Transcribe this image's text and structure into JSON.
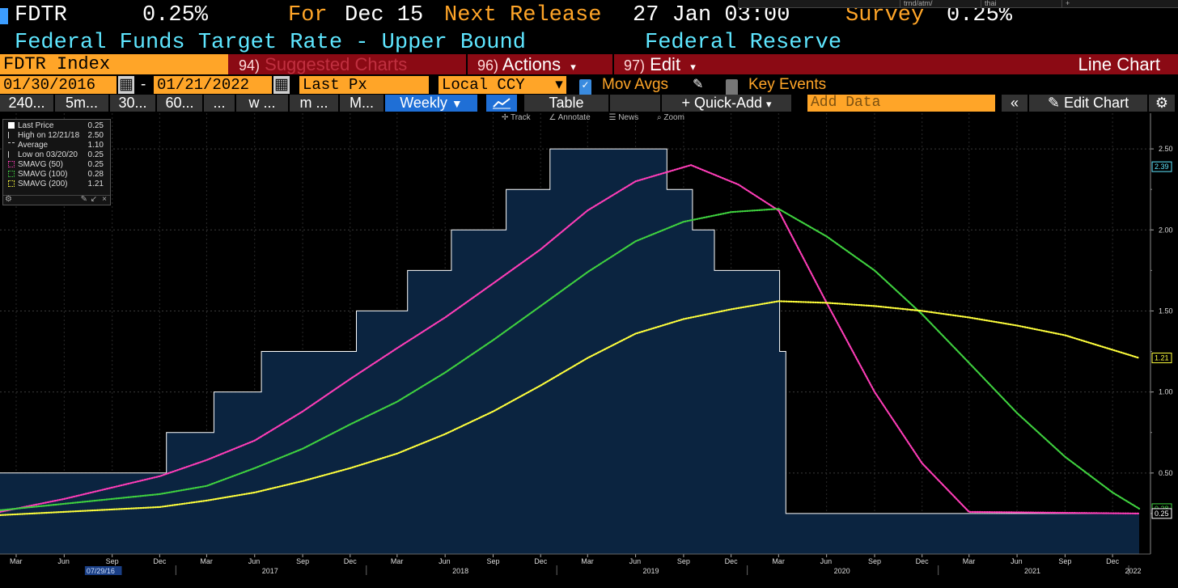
{
  "header": {
    "ticker": "FDTR",
    "last_value": "0.25%",
    "for_label": "For",
    "for_date": "Dec 15",
    "next_release_label": "Next Release",
    "next_release_date": "27 Jan 03:00",
    "survey_label": "Survey",
    "survey_value": "0.25%",
    "description": "Federal Funds Target Rate - Upper Bound",
    "source": "Federal Reserve",
    "top_right_cells": [
      "trnd/atm/",
      "thai",
      "+"
    ]
  },
  "toolbar": {
    "index_label": "FDTR Index",
    "suggested_num": "94)",
    "suggested_label": "Suggested Charts",
    "actions_num": "96)",
    "actions_label": "Actions",
    "edit_num": "97)",
    "edit_label": "Edit",
    "chart_type": "Line Chart"
  },
  "controls": {
    "start_date": "01/30/2016",
    "end_date": "01/21/2022",
    "date_sep": "-",
    "field": "Last Px",
    "currency": "Local CCY",
    "mov_avgs_label": "Mov Avgs",
    "mov_avgs_checked": true,
    "key_events_label": "Key Events",
    "key_events_checked": false
  },
  "periods": {
    "buttons": [
      "240...",
      "5m...",
      "30...",
      "60...",
      "...",
      "w ...",
      "m ...",
      "M..."
    ],
    "selected": "Weekly",
    "table_label": "Table",
    "quick_add_label": "+ Quick-Add",
    "add_data_placeholder": "Add Data",
    "edit_chart_label": "Edit Chart"
  },
  "chart_tools": [
    "Track",
    "Annotate",
    "News",
    "Zoom"
  ],
  "legend": {
    "items": [
      {
        "label": "Last Price",
        "value": "0.25",
        "color": "#ffffff"
      },
      {
        "label": "High on 12/21/18",
        "value": "2.50",
        "color": ""
      },
      {
        "label": "Average",
        "value": "1.10",
        "color": ""
      },
      {
        "label": "Low on 03/20/20",
        "value": "0.25",
        "color": ""
      },
      {
        "label": "SMAVG (50)",
        "value": "0.25",
        "color": "#ff3db8"
      },
      {
        "label": "SMAVG (100)",
        "value": "0.28",
        "color": "#3fd23f"
      },
      {
        "label": "SMAVG (200)",
        "value": "1.21",
        "color": "#ffff3c"
      }
    ]
  },
  "chart_data": {
    "type": "area",
    "x_range": [
      "2016-01-30",
      "2022-01-21"
    ],
    "ylim": [
      0,
      2.72
    ],
    "yticks": [
      "0.50",
      "1.00",
      "1.50",
      "2.00",
      "2.50"
    ],
    "month_ticks": [
      "Mar",
      "Jun",
      "Sep",
      "Dec",
      "Mar",
      "Jun",
      "Sep",
      "Dec",
      "Mar",
      "Jun",
      "Sep",
      "Dec",
      "Mar",
      "Jun",
      "Sep",
      "Dec",
      "Mar",
      "Jun",
      "Sep",
      "Dec",
      "Mar",
      "Jun",
      "Sep",
      "Dec"
    ],
    "year_labels": [
      "07/29/16",
      "2017",
      "2018",
      "2019",
      "2020",
      "2021",
      "2022"
    ],
    "last_value_tags": [
      {
        "value": 2.39,
        "label": "2.39",
        "color": "#5ee6ff"
      },
      {
        "value": 1.21,
        "label": "1.21",
        "color": "#ffff3c"
      },
      {
        "value": 0.28,
        "label": "0.28",
        "color": "#3fd23f"
      },
      {
        "value": 0.25,
        "label": "0.25",
        "color": "#ffffff"
      }
    ],
    "series": [
      {
        "name": "Last Price",
        "color": "#ffffff",
        "fill": "#0b2440",
        "points": [
          [
            "2016-01-30",
            0.5
          ],
          [
            "2016-12-14",
            0.5
          ],
          [
            "2016-12-14",
            0.75
          ],
          [
            "2017-03-15",
            0.75
          ],
          [
            "2017-03-15",
            1.0
          ],
          [
            "2017-06-14",
            1.0
          ],
          [
            "2017-06-14",
            1.25
          ],
          [
            "2017-12-13",
            1.25
          ],
          [
            "2017-12-13",
            1.5
          ],
          [
            "2018-03-21",
            1.5
          ],
          [
            "2018-03-21",
            1.75
          ],
          [
            "2018-06-13",
            1.75
          ],
          [
            "2018-06-13",
            2.0
          ],
          [
            "2018-09-26",
            2.0
          ],
          [
            "2018-09-26",
            2.25
          ],
          [
            "2018-12-19",
            2.25
          ],
          [
            "2018-12-19",
            2.5
          ],
          [
            "2019-07-31",
            2.5
          ],
          [
            "2019-07-31",
            2.25
          ],
          [
            "2019-09-18",
            2.25
          ],
          [
            "2019-09-18",
            2.0
          ],
          [
            "2019-10-30",
            2.0
          ],
          [
            "2019-10-30",
            1.75
          ],
          [
            "2020-03-03",
            1.75
          ],
          [
            "2020-03-03",
            1.25
          ],
          [
            "2020-03-15",
            1.25
          ],
          [
            "2020-03-15",
            0.25
          ],
          [
            "2022-01-21",
            0.25
          ]
        ]
      },
      {
        "name": "SMAVG (50)",
        "color": "#ff3db8",
        "points": [
          [
            "2016-01-30",
            0.26
          ],
          [
            "2016-06-01",
            0.34
          ],
          [
            "2016-12-01",
            0.48
          ],
          [
            "2017-03-01",
            0.58
          ],
          [
            "2017-06-01",
            0.7
          ],
          [
            "2017-09-01",
            0.88
          ],
          [
            "2017-12-01",
            1.08
          ],
          [
            "2018-03-01",
            1.27
          ],
          [
            "2018-06-01",
            1.46
          ],
          [
            "2018-09-01",
            1.67
          ],
          [
            "2018-12-01",
            1.88
          ],
          [
            "2019-03-01",
            2.12
          ],
          [
            "2019-06-01",
            2.3
          ],
          [
            "2019-09-15",
            2.4
          ],
          [
            "2019-12-15",
            2.28
          ],
          [
            "2020-03-01",
            2.12
          ],
          [
            "2020-06-01",
            1.55
          ],
          [
            "2020-09-01",
            1.0
          ],
          [
            "2020-12-01",
            0.56
          ],
          [
            "2021-03-01",
            0.26
          ],
          [
            "2022-01-21",
            0.25
          ]
        ]
      },
      {
        "name": "SMAVG (100)",
        "color": "#3fd23f",
        "points": [
          [
            "2016-01-30",
            0.27
          ],
          [
            "2016-06-01",
            0.31
          ],
          [
            "2016-12-01",
            0.37
          ],
          [
            "2017-03-01",
            0.42
          ],
          [
            "2017-06-01",
            0.53
          ],
          [
            "2017-09-01",
            0.65
          ],
          [
            "2017-12-01",
            0.8
          ],
          [
            "2018-03-01",
            0.94
          ],
          [
            "2018-06-01",
            1.12
          ],
          [
            "2018-09-01",
            1.32
          ],
          [
            "2018-12-01",
            1.53
          ],
          [
            "2019-03-01",
            1.74
          ],
          [
            "2019-06-01",
            1.93
          ],
          [
            "2019-09-01",
            2.05
          ],
          [
            "2019-12-01",
            2.11
          ],
          [
            "2020-03-01",
            2.13
          ],
          [
            "2020-06-01",
            1.96
          ],
          [
            "2020-09-01",
            1.75
          ],
          [
            "2020-12-01",
            1.48
          ],
          [
            "2021-03-01",
            1.18
          ],
          [
            "2021-06-01",
            0.87
          ],
          [
            "2021-09-01",
            0.6
          ],
          [
            "2021-12-01",
            0.38
          ],
          [
            "2022-01-21",
            0.28
          ]
        ]
      },
      {
        "name": "SMAVG (200)",
        "color": "#ffff3c",
        "points": [
          [
            "2016-01-30",
            0.24
          ],
          [
            "2016-06-01",
            0.26
          ],
          [
            "2016-12-01",
            0.29
          ],
          [
            "2017-03-01",
            0.33
          ],
          [
            "2017-06-01",
            0.38
          ],
          [
            "2017-09-01",
            0.45
          ],
          [
            "2017-12-01",
            0.53
          ],
          [
            "2018-03-01",
            0.62
          ],
          [
            "2018-06-01",
            0.74
          ],
          [
            "2018-09-01",
            0.88
          ],
          [
            "2018-12-01",
            1.04
          ],
          [
            "2019-03-01",
            1.21
          ],
          [
            "2019-06-01",
            1.36
          ],
          [
            "2019-09-01",
            1.45
          ],
          [
            "2019-12-01",
            1.51
          ],
          [
            "2020-03-01",
            1.56
          ],
          [
            "2020-06-01",
            1.55
          ],
          [
            "2020-09-01",
            1.53
          ],
          [
            "2020-12-01",
            1.5
          ],
          [
            "2021-03-01",
            1.46
          ],
          [
            "2021-06-01",
            1.41
          ],
          [
            "2021-09-01",
            1.35
          ],
          [
            "2021-12-01",
            1.26
          ],
          [
            "2022-01-21",
            1.21
          ]
        ]
      }
    ]
  }
}
